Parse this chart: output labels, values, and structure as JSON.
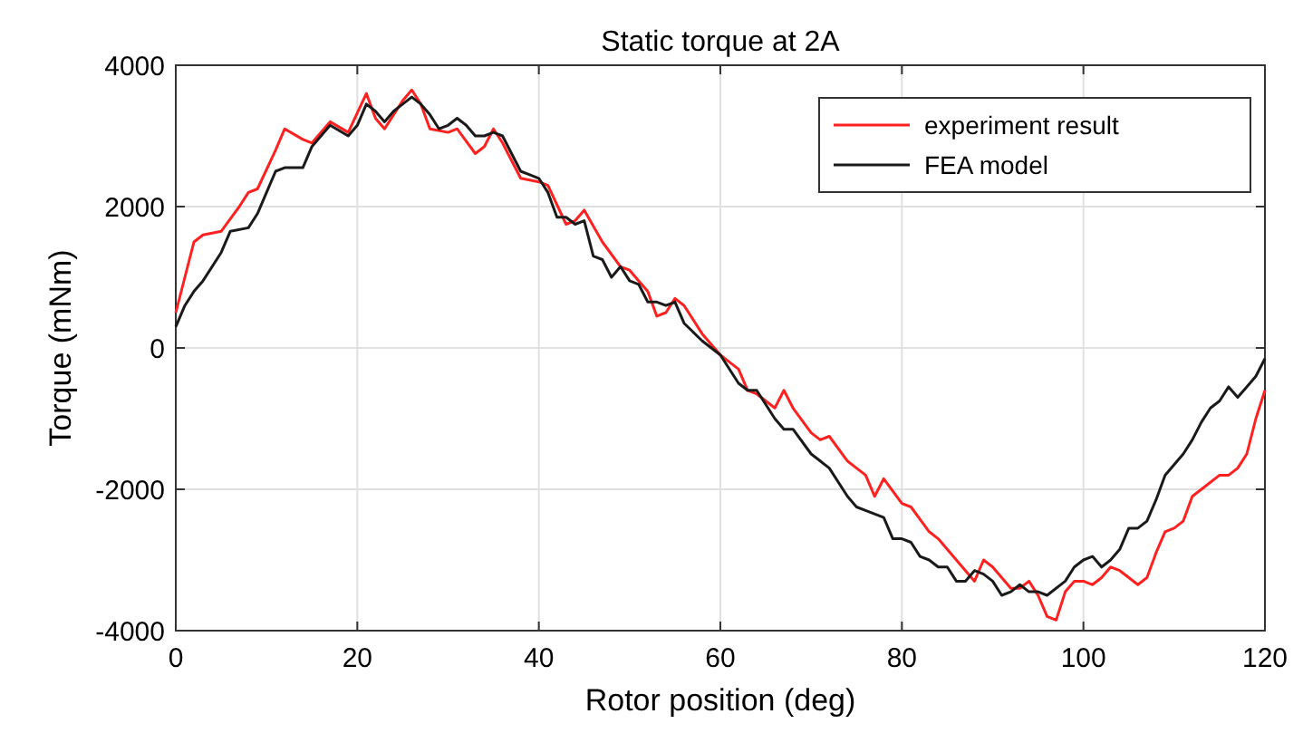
{
  "chart_data": {
    "type": "line",
    "title": "Static torque at 2A",
    "xlabel": "Rotor position (deg)",
    "ylabel": "Torque (mNm)",
    "xlim": [
      0,
      120
    ],
    "ylim": [
      -4000,
      4000
    ],
    "xticks": [
      0,
      20,
      40,
      60,
      80,
      100,
      120
    ],
    "yticks": [
      -4000,
      -2000,
      0,
      2000,
      4000
    ],
    "grid": true,
    "legend": "top right",
    "line_style": "solid",
    "marker": "none",
    "series": [
      {
        "name": "experiment result",
        "color": "#ff2020",
        "x": [
          0,
          2,
          3,
          5,
          7,
          8,
          9,
          11,
          12,
          14,
          15,
          17,
          19,
          21,
          22,
          23,
          24,
          25,
          26,
          27,
          28,
          30,
          31,
          33,
          34,
          35,
          36,
          38,
          40,
          41,
          43,
          44,
          45,
          47,
          49,
          50,
          51,
          52,
          53,
          54,
          55,
          56,
          58,
          60,
          61,
          62,
          63,
          64,
          66,
          67,
          68,
          70,
          71,
          72,
          74,
          75,
          76,
          77,
          78,
          80,
          81,
          83,
          84,
          86,
          88,
          89,
          90,
          92,
          93,
          94,
          95,
          96,
          97,
          98,
          99,
          100,
          101,
          102,
          103,
          104,
          106,
          107,
          108,
          109,
          110,
          111,
          112,
          113,
          115,
          116,
          117,
          118,
          119,
          120
        ],
        "values": [
          500,
          1500,
          1600,
          1650,
          2000,
          2200,
          2250,
          2800,
          3100,
          2950,
          2900,
          3200,
          3050,
          3600,
          3250,
          3100,
          3300,
          3500,
          3650,
          3450,
          3100,
          3050,
          3100,
          2750,
          2850,
          3100,
          2900,
          2400,
          2350,
          2300,
          1750,
          1800,
          1950,
          1500,
          1150,
          1100,
          950,
          800,
          450,
          500,
          700,
          600,
          200,
          -100,
          -200,
          -300,
          -600,
          -650,
          -850,
          -600,
          -850,
          -1200,
          -1300,
          -1250,
          -1600,
          -1700,
          -1800,
          -2100,
          -1850,
          -2200,
          -2250,
          -2600,
          -2700,
          -3000,
          -3300,
          -3000,
          -3100,
          -3400,
          -3400,
          -3300,
          -3500,
          -3800,
          -3850,
          -3450,
          -3300,
          -3300,
          -3350,
          -3250,
          -3100,
          -3150,
          -3350,
          -3250,
          -2900,
          -2600,
          -2550,
          -2450,
          -2100,
          -2000,
          -1800,
          -1800,
          -1700,
          -1500,
          -1000,
          -600
        ]
      },
      {
        "name": "FEA model",
        "color": "#1a1a1a",
        "x": [
          0,
          1,
          2,
          3,
          5,
          6,
          8,
          9,
          10,
          11,
          12,
          14,
          15,
          17,
          19,
          20,
          21,
          22,
          23,
          24,
          25,
          26,
          27,
          28,
          29,
          30,
          31,
          32,
          33,
          34,
          35,
          36,
          37,
          38,
          39,
          40,
          41,
          42,
          43,
          44,
          45,
          46,
          47,
          48,
          49,
          50,
          51,
          52,
          53,
          54,
          55,
          56,
          58,
          60,
          62,
          63,
          64,
          66,
          67,
          68,
          70,
          71,
          72,
          74,
          75,
          76,
          78,
          79,
          80,
          81,
          82,
          83,
          84,
          85,
          86,
          87,
          88,
          89,
          90,
          91,
          92,
          93,
          94,
          95,
          96,
          98,
          99,
          100,
          101,
          102,
          103,
          104,
          105,
          106,
          107,
          108,
          109,
          110,
          111,
          112,
          113,
          114,
          115,
          116,
          117,
          118,
          119,
          120
        ],
        "values": [
          300,
          600,
          800,
          950,
          1350,
          1650,
          1700,
          1900,
          2200,
          2500,
          2550,
          2550,
          2850,
          3150,
          3000,
          3150,
          3450,
          3350,
          3200,
          3350,
          3450,
          3550,
          3450,
          3300,
          3100,
          3150,
          3250,
          3150,
          3000,
          3000,
          3050,
          3000,
          2750,
          2500,
          2450,
          2400,
          2200,
          1850,
          1850,
          1750,
          1800,
          1300,
          1250,
          1000,
          1150,
          950,
          900,
          650,
          650,
          600,
          650,
          350,
          100,
          -100,
          -500,
          -600,
          -600,
          -1000,
          -1150,
          -1150,
          -1500,
          -1600,
          -1700,
          -2100,
          -2250,
          -2300,
          -2400,
          -2700,
          -2700,
          -2750,
          -2950,
          -3000,
          -3100,
          -3100,
          -3300,
          -3300,
          -3150,
          -3200,
          -3300,
          -3500,
          -3450,
          -3350,
          -3450,
          -3450,
          -3500,
          -3300,
          -3100,
          -3000,
          -2950,
          -3100,
          -3000,
          -2850,
          -2550,
          -2550,
          -2450,
          -2150,
          -1800,
          -1650,
          -1500,
          -1300,
          -1050,
          -850,
          -750,
          -550,
          -700,
          -550,
          -400,
          -150
        ]
      }
    ]
  }
}
